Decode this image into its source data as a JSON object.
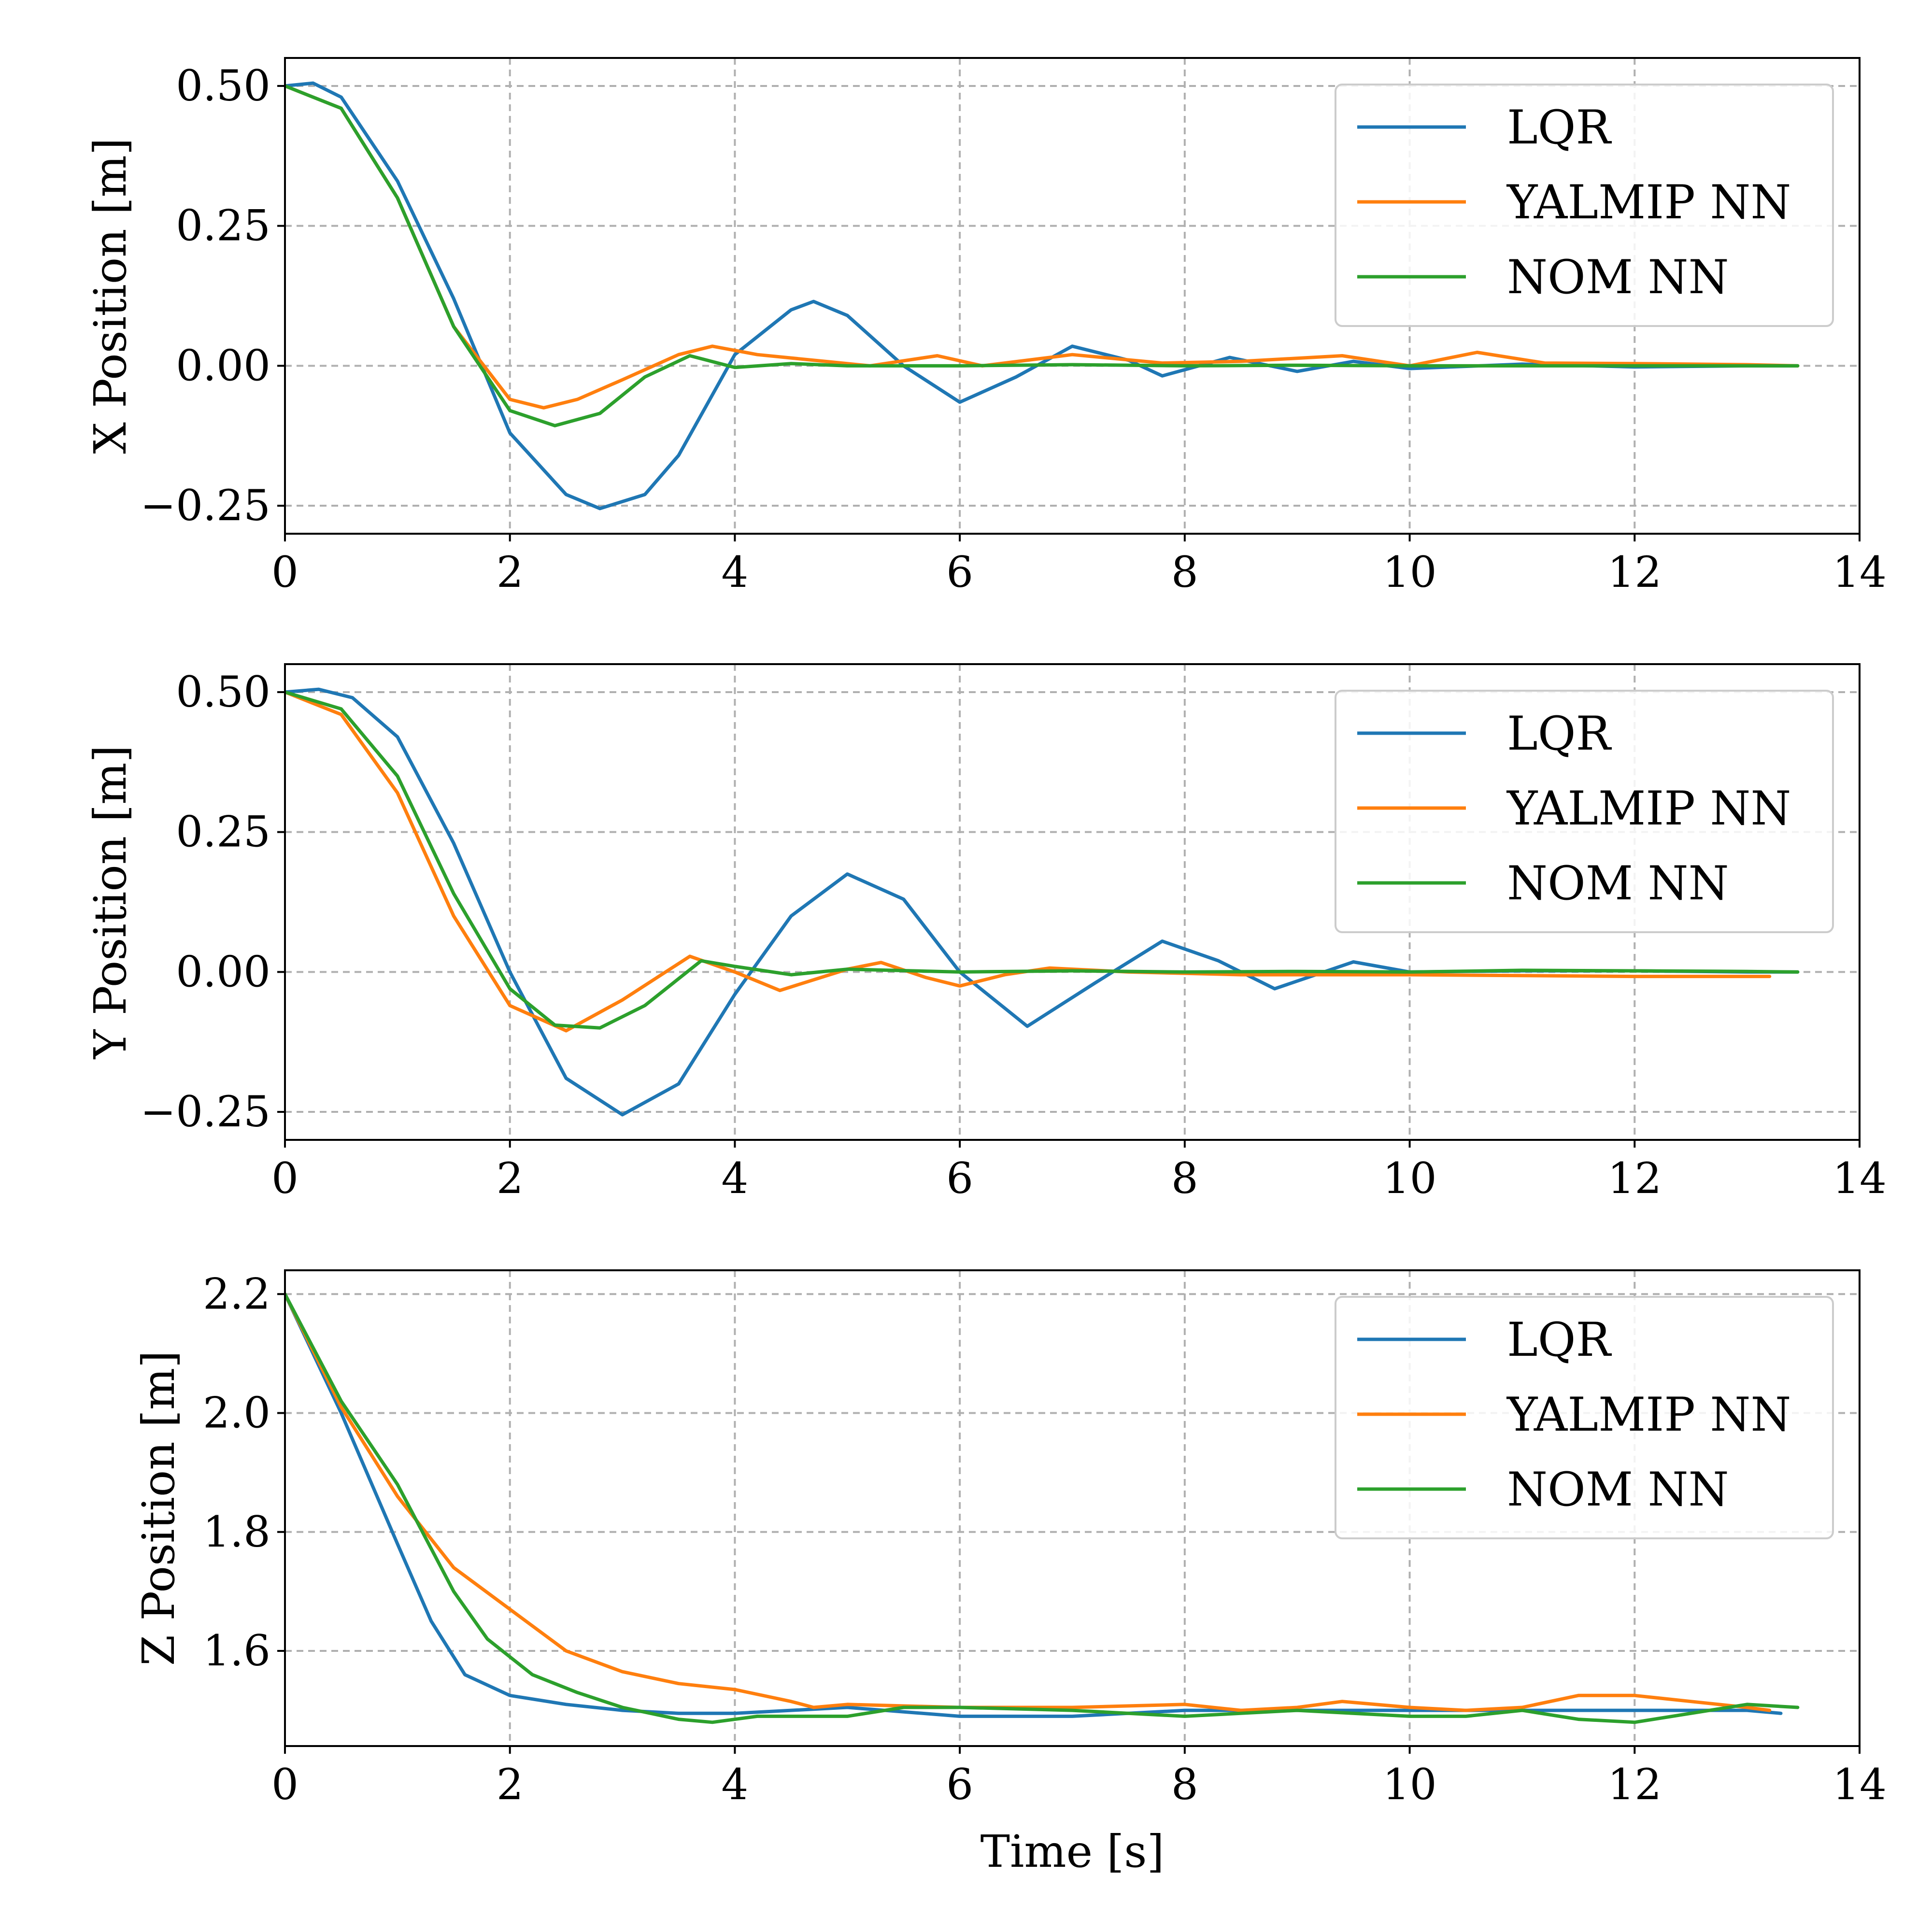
{
  "chart_data": [
    {
      "type": "line",
      "ylabel": "X Position [m]",
      "xlabel": "",
      "xlim": [
        0,
        14
      ],
      "ylim": [
        -0.3,
        0.55
      ],
      "xticks": [
        0,
        2,
        4,
        6,
        8,
        10,
        12,
        14
      ],
      "xtick_labels": [
        "0",
        "2",
        "4",
        "6",
        "8",
        "10",
        "12",
        "14"
      ],
      "yticks": [
        0.5,
        0.25,
        0.0,
        -0.25
      ],
      "ytick_labels": [
        "0.50",
        "0.25",
        "0.00",
        "−0.25"
      ],
      "grid": true,
      "legend_position": "top-right",
      "series": [
        {
          "name": "LQR",
          "color": "#1f77b4",
          "x": [
            0,
            0.25,
            0.5,
            1.0,
            1.5,
            2.0,
            2.5,
            2.8,
            3.2,
            3.5,
            4.0,
            4.5,
            4.7,
            5.0,
            5.5,
            6.0,
            6.5,
            7.0,
            7.5,
            7.8,
            8.4,
            9.0,
            9.5,
            10.0,
            11.0,
            12.0,
            13.0,
            13.45
          ],
          "y": [
            0.5,
            0.505,
            0.48,
            0.33,
            0.12,
            -0.12,
            -0.23,
            -0.255,
            -0.23,
            -0.16,
            0.02,
            0.1,
            0.115,
            0.09,
            0.0,
            -0.065,
            -0.02,
            0.035,
            0.01,
            -0.018,
            0.015,
            -0.01,
            0.008,
            -0.005,
            0.003,
            -0.002,
            0.0,
            0.0
          ]
        },
        {
          "name": "YALMIP NN",
          "color": "#ff7f0e",
          "x": [
            0,
            0.5,
            1.0,
            1.5,
            2.0,
            2.3,
            2.6,
            3.0,
            3.5,
            3.8,
            4.2,
            4.8,
            5.2,
            5.8,
            6.2,
            7.0,
            7.8,
            8.5,
            9.4,
            10.0,
            10.6,
            11.2,
            12.0,
            13.0,
            13.45
          ],
          "y": [
            0.5,
            0.46,
            0.3,
            0.07,
            -0.06,
            -0.075,
            -0.06,
            -0.025,
            0.02,
            0.035,
            0.02,
            0.008,
            0.0,
            0.018,
            0.0,
            0.02,
            0.005,
            0.008,
            0.018,
            0.0,
            0.024,
            0.005,
            0.004,
            0.002,
            0.0
          ]
        },
        {
          "name": "NOM NN",
          "color": "#2ca02c",
          "x": [
            0,
            0.5,
            1.0,
            1.5,
            2.0,
            2.4,
            2.8,
            3.2,
            3.6,
            4.0,
            4.5,
            5.0,
            6.0,
            7.0,
            8.0,
            9.0,
            10.0,
            11.0,
            12.0,
            13.0,
            13.45
          ],
          "y": [
            0.5,
            0.46,
            0.3,
            0.07,
            -0.08,
            -0.107,
            -0.085,
            -0.02,
            0.018,
            -0.003,
            0.004,
            0.0,
            0.0,
            0.002,
            0.0,
            0.001,
            0.0,
            0.0,
            0.0,
            0.0,
            0.0
          ]
        }
      ]
    },
    {
      "type": "line",
      "ylabel": "Y Position [m]",
      "xlabel": "",
      "xlim": [
        0,
        14
      ],
      "ylim": [
        -0.3,
        0.55
      ],
      "xticks": [
        0,
        2,
        4,
        6,
        8,
        10,
        12,
        14
      ],
      "xtick_labels": [
        "0",
        "2",
        "4",
        "6",
        "8",
        "10",
        "12",
        "14"
      ],
      "yticks": [
        0.5,
        0.25,
        0.0,
        -0.25
      ],
      "ytick_labels": [
        "0.50",
        "0.25",
        "0.00",
        "−0.25"
      ],
      "grid": true,
      "legend_position": "top-right",
      "series": [
        {
          "name": "LQR",
          "color": "#1f77b4",
          "x": [
            0,
            0.3,
            0.6,
            1.0,
            1.5,
            2.0,
            2.5,
            3.0,
            3.5,
            4.0,
            4.5,
            5.0,
            5.5,
            6.0,
            6.6,
            7.2,
            7.8,
            8.3,
            8.8,
            9.5,
            10.0,
            11.0,
            12.0,
            13.0,
            13.45
          ],
          "y": [
            0.5,
            0.505,
            0.49,
            0.42,
            0.23,
            0.0,
            -0.19,
            -0.255,
            -0.2,
            -0.04,
            0.1,
            0.175,
            0.13,
            0.0,
            -0.097,
            -0.02,
            0.055,
            0.02,
            -0.03,
            0.018,
            0.0,
            0.002,
            0.002,
            0.0,
            0.0
          ]
        },
        {
          "name": "YALMIP NN",
          "color": "#ff7f0e",
          "x": [
            0,
            0.5,
            1.0,
            1.5,
            2.0,
            2.5,
            3.0,
            3.6,
            4.0,
            4.4,
            5.0,
            5.3,
            5.7,
            6.0,
            6.4,
            6.8,
            7.5,
            8.5,
            10.0,
            12.0,
            13.2
          ],
          "y": [
            0.5,
            0.46,
            0.32,
            0.1,
            -0.06,
            -0.105,
            -0.05,
            0.028,
            0.0,
            -0.033,
            0.005,
            0.017,
            -0.01,
            -0.025,
            -0.005,
            0.007,
            0.0,
            -0.005,
            -0.005,
            -0.008,
            -0.008
          ]
        },
        {
          "name": "NOM NN",
          "color": "#2ca02c",
          "x": [
            0,
            0.5,
            1.0,
            1.5,
            2.0,
            2.4,
            2.8,
            3.2,
            3.7,
            4.0,
            4.5,
            5.0,
            6.0,
            7.0,
            8.0,
            9.0,
            10.0,
            11.0,
            12.0,
            13.0,
            13.45
          ],
          "y": [
            0.5,
            0.47,
            0.35,
            0.14,
            -0.03,
            -0.095,
            -0.1,
            -0.06,
            0.02,
            0.01,
            -0.005,
            0.005,
            0.0,
            0.002,
            0.0,
            0.001,
            0.0,
            0.003,
            0.002,
            0.001,
            0.0
          ]
        }
      ]
    },
    {
      "type": "line",
      "ylabel": "Z Position [m]",
      "xlabel": "Time [s]",
      "xlim": [
        0,
        14
      ],
      "ylim": [
        1.44,
        2.24
      ],
      "xticks": [
        0,
        2,
        4,
        6,
        8,
        10,
        12,
        14
      ],
      "xtick_labels": [
        "0",
        "2",
        "4",
        "6",
        "8",
        "10",
        "12",
        "14"
      ],
      "yticks": [
        2.2,
        2.0,
        1.8,
        1.6
      ],
      "ytick_labels": [
        "2.2",
        "2.0",
        "1.8",
        "1.6"
      ],
      "grid": true,
      "legend_position": "top-right",
      "series": [
        {
          "name": "LQR",
          "color": "#1f77b4",
          "x": [
            0,
            0.5,
            1.0,
            1.3,
            1.6,
            2.0,
            2.5,
            3.0,
            3.5,
            4.0,
            5.0,
            6.0,
            7.0,
            8.0,
            9.0,
            10.0,
            11.0,
            12.0,
            13.0,
            13.3
          ],
          "y": [
            2.2,
            2.0,
            1.78,
            1.65,
            1.56,
            1.525,
            1.51,
            1.5,
            1.495,
            1.495,
            1.505,
            1.49,
            1.49,
            1.5,
            1.5,
            1.5,
            1.5,
            1.5,
            1.5,
            1.495
          ]
        },
        {
          "name": "YALMIP NN",
          "color": "#ff7f0e",
          "x": [
            0,
            0.5,
            1.0,
            1.5,
            2.0,
            2.5,
            3.0,
            3.5,
            4.0,
            4.5,
            4.7,
            5.0,
            6.0,
            7.0,
            8.0,
            8.5,
            9.0,
            9.4,
            10.0,
            10.5,
            11.0,
            11.5,
            12.0,
            12.5,
            13.0,
            13.2
          ],
          "y": [
            2.2,
            2.01,
            1.86,
            1.74,
            1.67,
            1.6,
            1.565,
            1.545,
            1.535,
            1.515,
            1.505,
            1.51,
            1.505,
            1.505,
            1.51,
            1.5,
            1.505,
            1.515,
            1.505,
            1.5,
            1.505,
            1.525,
            1.525,
            1.515,
            1.505,
            1.5
          ]
        },
        {
          "name": "NOM NN",
          "color": "#2ca02c",
          "x": [
            0,
            0.5,
            1.0,
            1.5,
            1.8,
            2.2,
            2.6,
            3.0,
            3.5,
            3.8,
            4.2,
            5.0,
            5.5,
            6.0,
            7.0,
            8.0,
            9.0,
            10.0,
            10.5,
            11.0,
            11.5,
            12.0,
            12.5,
            13.0,
            13.45
          ],
          "y": [
            2.2,
            2.02,
            1.88,
            1.7,
            1.62,
            1.56,
            1.53,
            1.505,
            1.485,
            1.48,
            1.49,
            1.49,
            1.505,
            1.505,
            1.5,
            1.49,
            1.5,
            1.49,
            1.49,
            1.5,
            1.485,
            1.48,
            1.495,
            1.51,
            1.505
          ]
        }
      ]
    }
  ]
}
